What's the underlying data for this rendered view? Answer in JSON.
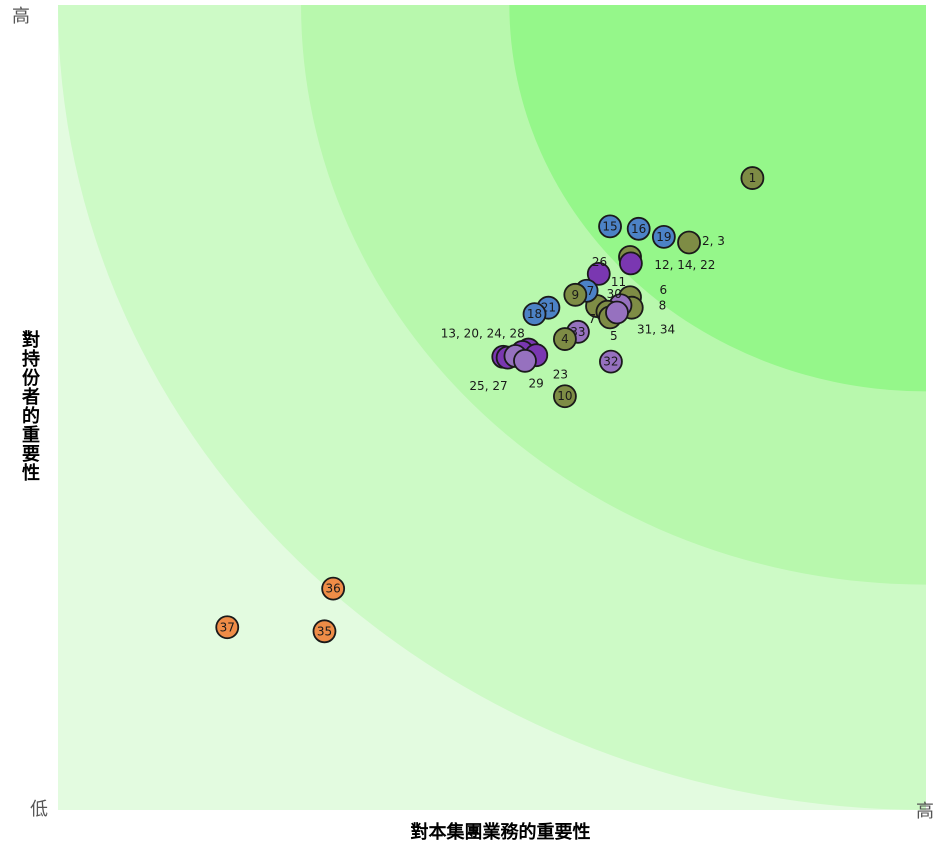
{
  "chart_data": {
    "type": "scatter",
    "title": "",
    "xlabel": "對本集團業務的重要性",
    "ylabel": "對持份者的重要性",
    "x_low": "",
    "x_high": "高",
    "y_low": "低",
    "y_high": "高",
    "xlim": [
      0,
      100
    ],
    "ylim": [
      0,
      100
    ],
    "grid": false,
    "zones": {
      "colors": [
        "#e3fbe0",
        "#cdfac6",
        "#b8f8ad",
        "#95f78a"
      ],
      "center": [
        100,
        100
      ],
      "radii": [
        100,
        72,
        48
      ]
    },
    "category_colors": {
      "olive": "#7e8c45",
      "blue": "#4c82c6",
      "purple": "#7a37b1",
      "lavender": "#9671bf",
      "orange": "#ef8c47"
    },
    "points": [
      {
        "x": 80.0,
        "y": 78.5,
        "color": "olive",
        "label": "1"
      },
      {
        "x": 72.7,
        "y": 70.5,
        "color": "olive",
        "label": ""
      },
      {
        "x": 69.8,
        "y": 71.2,
        "color": "blue",
        "label": "19"
      },
      {
        "x": 66.9,
        "y": 72.2,
        "color": "blue",
        "label": "16"
      },
      {
        "x": 63.6,
        "y": 72.5,
        "color": "blue",
        "label": "15"
      },
      {
        "x": 65.9,
        "y": 68.7,
        "color": "olive",
        "label": ""
      },
      {
        "x": 66.0,
        "y": 67.9,
        "color": "purple",
        "label": ""
      },
      {
        "x": 62.3,
        "y": 66.6,
        "color": "purple",
        "label": ""
      },
      {
        "x": 65.9,
        "y": 63.7,
        "color": "olive",
        "label": ""
      },
      {
        "x": 66.1,
        "y": 62.4,
        "color": "olive",
        "label": ""
      },
      {
        "x": 64.8,
        "y": 62.7,
        "color": "lavender",
        "label": ""
      },
      {
        "x": 62.1,
        "y": 62.6,
        "color": "olive",
        "label": ""
      },
      {
        "x": 63.3,
        "y": 61.9,
        "color": "olive",
        "label": ""
      },
      {
        "x": 63.6,
        "y": 61.2,
        "color": "olive",
        "label": ""
      },
      {
        "x": 64.4,
        "y": 61.8,
        "color": "lavender",
        "label": ""
      },
      {
        "x": 60.9,
        "y": 64.5,
        "color": "blue",
        "label": "17"
      },
      {
        "x": 59.6,
        "y": 64.0,
        "color": "olive",
        "label": "9"
      },
      {
        "x": 56.5,
        "y": 62.4,
        "color": "blue",
        "label": "21"
      },
      {
        "x": 54.9,
        "y": 61.6,
        "color": "blue",
        "label": "18"
      },
      {
        "x": 59.9,
        "y": 59.4,
        "color": "lavender",
        "label": "33"
      },
      {
        "x": 58.4,
        "y": 58.5,
        "color": "olive",
        "label": "4"
      },
      {
        "x": 54.2,
        "y": 57.2,
        "color": "purple",
        "label": ""
      },
      {
        "x": 53.5,
        "y": 56.9,
        "color": "purple",
        "label": ""
      },
      {
        "x": 55.1,
        "y": 56.5,
        "color": "purple",
        "label": ""
      },
      {
        "x": 51.3,
        "y": 56.3,
        "color": "purple",
        "label": ""
      },
      {
        "x": 51.8,
        "y": 56.2,
        "color": "purple",
        "label": ""
      },
      {
        "x": 52.7,
        "y": 56.4,
        "color": "lavender",
        "label": ""
      },
      {
        "x": 53.8,
        "y": 55.8,
        "color": "lavender",
        "label": ""
      },
      {
        "x": 63.7,
        "y": 55.7,
        "color": "lavender",
        "label": "32"
      },
      {
        "x": 58.4,
        "y": 51.4,
        "color": "olive",
        "label": "10"
      },
      {
        "x": 31.7,
        "y": 27.5,
        "color": "orange",
        "label": "36"
      },
      {
        "x": 19.5,
        "y": 22.7,
        "color": "orange",
        "label": "37"
      },
      {
        "x": 30.7,
        "y": 22.2,
        "color": "orange",
        "label": "35"
      }
    ],
    "annotations": [
      {
        "text": "2, 3",
        "x": 74.2,
        "y": 70.7
      },
      {
        "text": "12, 14, 22",
        "x": 68.7,
        "y": 67.7
      },
      {
        "text": "26",
        "x": 61.5,
        "y": 68.1
      },
      {
        "text": "11",
        "x": 63.7,
        "y": 65.6
      },
      {
        "text": "30",
        "x": 63.2,
        "y": 64.1
      },
      {
        "text": "6",
        "x": 69.3,
        "y": 64.6
      },
      {
        "text": "8",
        "x": 69.2,
        "y": 62.7
      },
      {
        "text": "7",
        "x": 61.1,
        "y": 61.0
      },
      {
        "text": "31, 34",
        "x": 66.7,
        "y": 59.7
      },
      {
        "text": "5",
        "x": 63.6,
        "y": 58.9
      },
      {
        "text": "13, 20, 24, 28",
        "x": 44.1,
        "y": 59.2
      },
      {
        "text": "23",
        "x": 57.0,
        "y": 54.1
      },
      {
        "text": "29",
        "x": 54.2,
        "y": 53.0
      },
      {
        "text": "25, 27",
        "x": 47.4,
        "y": 52.7
      }
    ]
  }
}
